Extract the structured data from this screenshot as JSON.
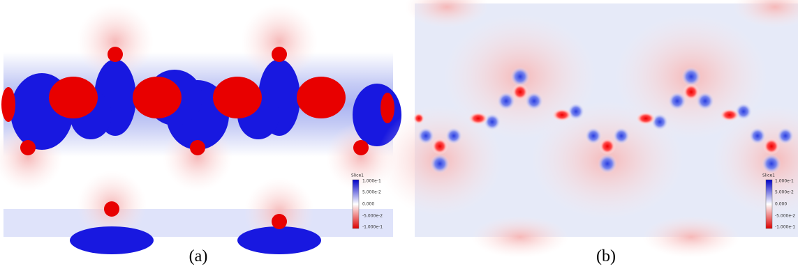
{
  "panels": [
    {
      "caption": "(a)",
      "legend": {
        "title": "Slice1",
        "labels": [
          "1.000e-1",
          "5.000e-2",
          "0.000",
          "-5.000e-2",
          "-1.000e-1"
        ]
      }
    },
    {
      "caption": "(b)",
      "legend": {
        "title": "Slice1",
        "labels": [
          "1.000e-1",
          "5.000e-2",
          "0.000",
          "-5.000e-2",
          "-1.000e-1"
        ]
      }
    }
  ]
}
